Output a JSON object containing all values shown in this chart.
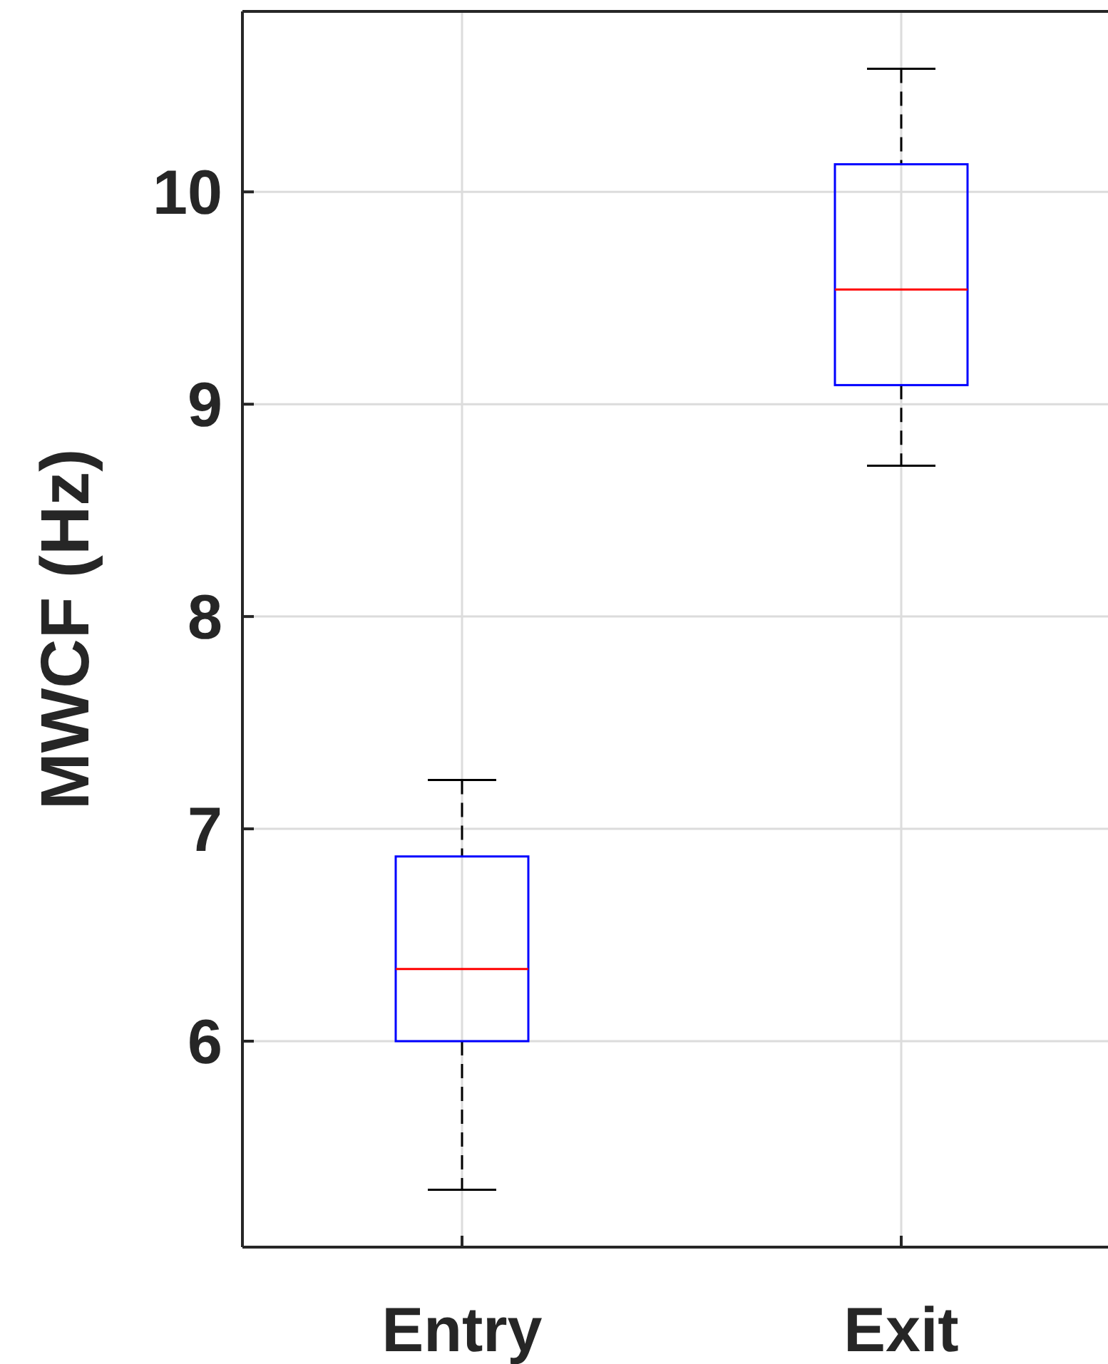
{
  "chart_data": {
    "type": "box",
    "ylabel": "MWCF (Hz)",
    "categories": [
      "Entry",
      "Exit"
    ],
    "color": "#0000ff",
    "boxes": [
      {
        "low": 5.3,
        "q1": 6.0,
        "median": 6.34,
        "q3": 6.87,
        "high": 7.23
      },
      {
        "low": 8.71,
        "q1": 9.09,
        "median": 9.54,
        "q3": 10.13,
        "high": 10.58
      }
    ],
    "ylim": [
      5.03,
      10.85
    ],
    "yticks": [
      6,
      7,
      8,
      9,
      10
    ],
    "grid": true
  }
}
